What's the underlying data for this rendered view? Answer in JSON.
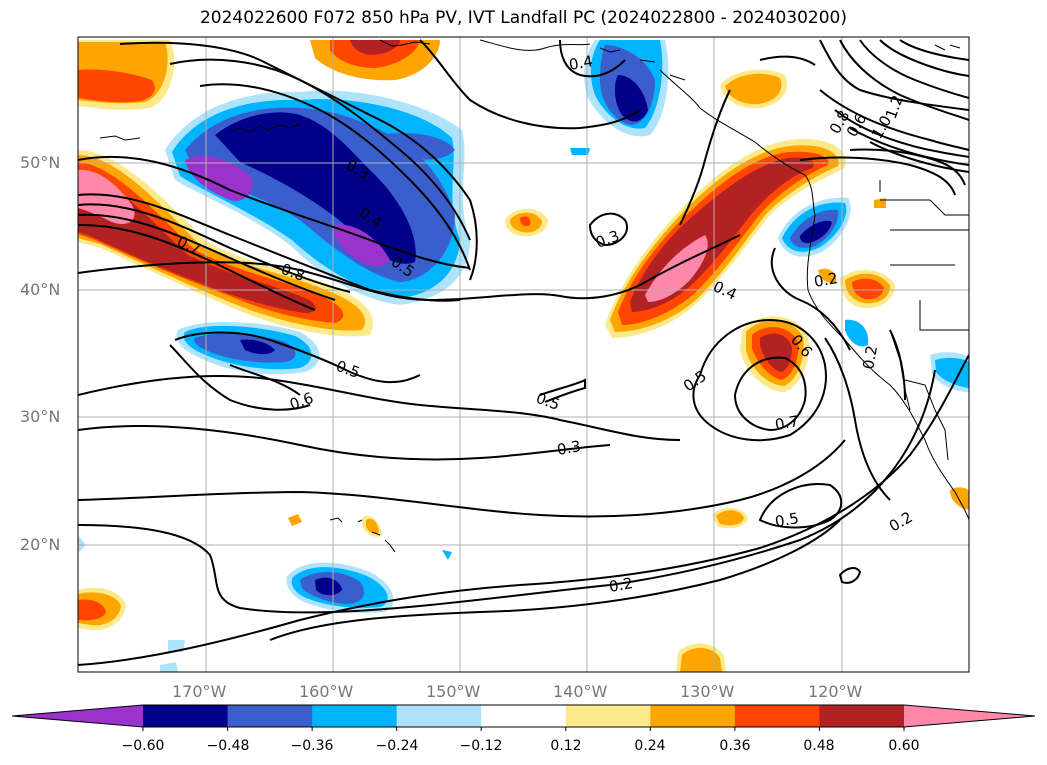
{
  "title": "2024022600 F072 850 hPa PV, IVT Landfall PC (2024022800 - 2024030200)",
  "lon_labels": [
    "170°W",
    "160°W",
    "150°W",
    "140°W",
    "130°W",
    "120°W"
  ],
  "lat_labels": [
    "50°N",
    "40°N",
    "30°N",
    "20°N"
  ],
  "colorbar": {
    "labels": [
      "−0.60",
      "−0.48",
      "−0.36",
      "−0.24",
      "−0.12",
      "0.12",
      "0.24",
      "0.36",
      "0.48",
      "0.60"
    ],
    "colors": [
      "#9933cc",
      "#00008b",
      "#3a5fcd",
      "#00b4ff",
      "#aee4fb",
      "#ffffff",
      "#fce98a",
      "#ffa500",
      "#ff4500",
      "#b22222",
      "#ff88aa"
    ]
  },
  "contour_labels": [
    {
      "text": "0.4"
    },
    {
      "text": "0.3"
    },
    {
      "text": "0.4"
    },
    {
      "text": "0.5"
    },
    {
      "text": "0.7"
    },
    {
      "text": "0.8"
    },
    {
      "text": "0.5"
    },
    {
      "text": "0.6"
    },
    {
      "text": "0.5"
    },
    {
      "text": "0.3"
    },
    {
      "text": "0.3"
    },
    {
      "text": "0.4"
    },
    {
      "text": "0.5"
    },
    {
      "text": "0.6"
    },
    {
      "text": "0.7"
    },
    {
      "text": "0.5"
    },
    {
      "text": "0.2"
    },
    {
      "text": "0.2"
    },
    {
      "text": "0.2"
    },
    {
      "text": "0.2"
    },
    {
      "text": "1.0"
    },
    {
      "text": "1.2"
    },
    {
      "text": "0.8"
    },
    {
      "text": "0.6"
    }
  ]
}
